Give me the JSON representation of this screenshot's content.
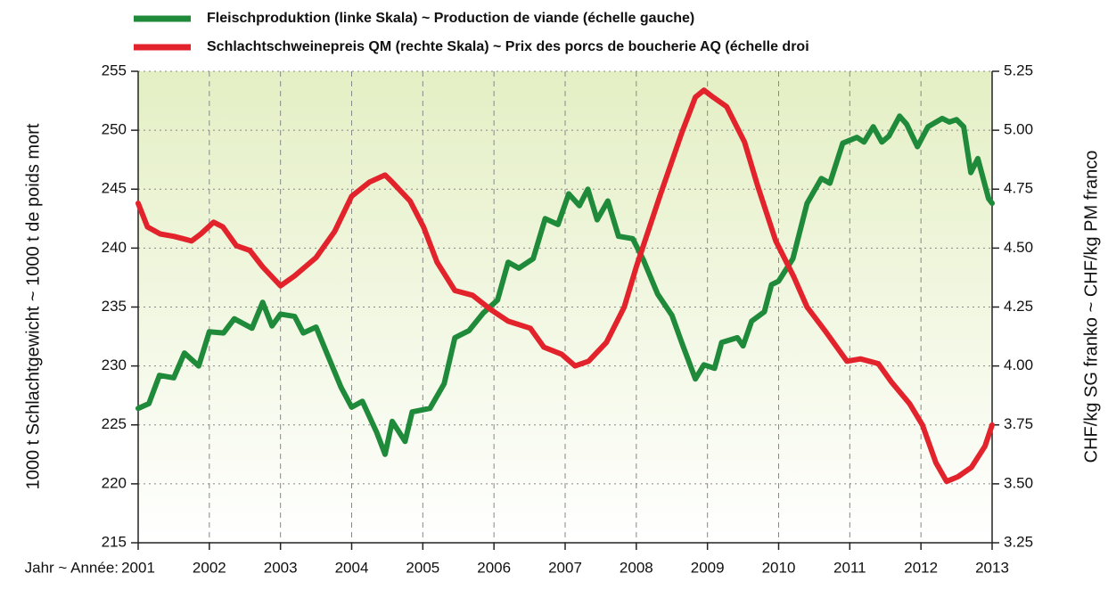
{
  "chart_data": {
    "type": "line",
    "xlabel": "Jahr ~ Année:",
    "ylabel": "1000 t Schlachtgewicht ~ 1000 t de poids mort",
    "y2label": "CHF/kg SG franko ~ CHF/kg PM franco",
    "xlim": [
      2001,
      2013
    ],
    "xticks": [
      2001,
      2002,
      2003,
      2004,
      2005,
      2006,
      2007,
      2008,
      2009,
      2010,
      2011,
      2012,
      2013
    ],
    "ylim": [
      215,
      255
    ],
    "yticks": [
      215,
      220,
      225,
      230,
      235,
      240,
      245,
      250,
      255
    ],
    "y2lim": [
      3.25,
      5.25
    ],
    "y2ticks": [
      3.25,
      {
        "value": 3.5,
        "label": "3.50"
      },
      3.75,
      {
        "value": 4.0,
        "label": "4.00"
      },
      4.25,
      {
        "value": 4.5,
        "label": "4.50"
      },
      4.75,
      {
        "value": 5.0,
        "label": "5.00"
      },
      5.25
    ],
    "grid": true,
    "series": [
      {
        "name": "Fleischproduktion (linke Skala) ~ Production de viande (échelle gauche)",
        "color": "#1e8a3a",
        "x": [
          2001.0,
          2001.15,
          2001.3,
          2001.5,
          2001.65,
          2001.85,
          2002.0,
          2002.2,
          2002.35,
          2002.6,
          2002.75,
          2002.88,
          2003.0,
          2003.2,
          2003.32,
          2003.5,
          2003.65,
          2003.85,
          2004.0,
          2004.15,
          2004.35,
          2004.47,
          2004.57,
          2004.75,
          2004.85,
          2005.1,
          2005.3,
          2005.45,
          2005.65,
          2005.85,
          2006.05,
          2006.2,
          2006.35,
          2006.55,
          2006.72,
          2006.9,
          2007.05,
          2007.2,
          2007.32,
          2007.45,
          2007.6,
          2007.75,
          2007.95,
          2008.1,
          2008.3,
          2008.5,
          2008.65,
          2008.83,
          2008.95,
          2009.1,
          2009.2,
          2009.42,
          2009.5,
          2009.62,
          2009.8,
          2009.9,
          2010.0,
          2010.2,
          2010.4,
          2010.6,
          2010.72,
          2010.9,
          2011.1,
          2011.2,
          2011.33,
          2011.45,
          2011.55,
          2011.7,
          2011.8,
          2011.95,
          2012.1,
          2012.3,
          2012.4,
          2012.5,
          2012.6,
          2012.7,
          2012.8,
          2012.95,
          2013.0
        ],
        "values": [
          226.4,
          226.8,
          229.2,
          229.0,
          231.1,
          230.0,
          232.9,
          232.8,
          234.0,
          233.2,
          235.4,
          233.4,
          234.4,
          234.2,
          232.8,
          233.3,
          231.1,
          228.2,
          226.5,
          227.0,
          224.4,
          222.5,
          225.3,
          223.6,
          226.1,
          226.4,
          228.5,
          232.4,
          233.0,
          234.5,
          235.6,
          238.8,
          238.3,
          239.1,
          242.5,
          242.0,
          244.6,
          243.6,
          245.0,
          242.4,
          244.0,
          241.0,
          240.8,
          239.0,
          236.1,
          234.3,
          231.8,
          228.9,
          230.1,
          229.8,
          232.0,
          232.4,
          231.7,
          233.8,
          234.6,
          236.9,
          237.2,
          239.1,
          243.8,
          245.9,
          245.5,
          248.9,
          249.4,
          249.0,
          250.3,
          249.0,
          249.5,
          251.2,
          250.5,
          248.6,
          250.3,
          251.0,
          250.7,
          250.9,
          250.3,
          246.4,
          247.6,
          244.2,
          243.8
        ]
      },
      {
        "name": "Schlachtschweinepreis QM (rechte Skala) ~ Prix des porcs de boucherie AQ (échelle droi",
        "color": "#e3232c",
        "axis": "y2",
        "x": [
          2001.0,
          2001.13,
          2001.31,
          2001.5,
          2001.63,
          2001.75,
          2001.88,
          2002.06,
          2002.19,
          2002.38,
          2002.57,
          2002.75,
          2003.0,
          2003.19,
          2003.5,
          2003.76,
          2004.0,
          2004.25,
          2004.47,
          2004.57,
          2004.82,
          2005.01,
          2005.2,
          2005.45,
          2005.7,
          2005.95,
          2006.2,
          2006.51,
          2006.7,
          2006.95,
          2007.14,
          2007.33,
          2007.58,
          2007.83,
          2008.0,
          2008.33,
          2008.64,
          2008.83,
          2008.95,
          2009.08,
          2009.27,
          2009.52,
          2009.71,
          2009.96,
          2010.21,
          2010.4,
          2010.65,
          2010.96,
          2011.15,
          2011.4,
          2011.59,
          2011.84,
          2012.02,
          2012.21,
          2012.36,
          2012.52,
          2012.71,
          2012.9,
          2013.0
        ],
        "values": [
          4.69,
          4.59,
          4.56,
          4.55,
          4.54,
          4.53,
          4.56,
          4.61,
          4.59,
          4.51,
          4.49,
          4.42,
          4.34,
          4.38,
          4.46,
          4.57,
          4.72,
          4.78,
          4.81,
          4.78,
          4.7,
          4.59,
          4.44,
          4.32,
          4.3,
          4.24,
          4.19,
          4.16,
          4.08,
          4.05,
          4.0,
          4.02,
          4.1,
          4.25,
          4.42,
          4.72,
          4.99,
          5.14,
          5.17,
          5.14,
          5.1,
          4.95,
          4.76,
          4.53,
          4.38,
          4.25,
          4.15,
          4.02,
          4.03,
          4.01,
          3.93,
          3.84,
          3.75,
          3.59,
          3.51,
          3.53,
          3.57,
          3.66,
          3.75
        ]
      }
    ]
  }
}
